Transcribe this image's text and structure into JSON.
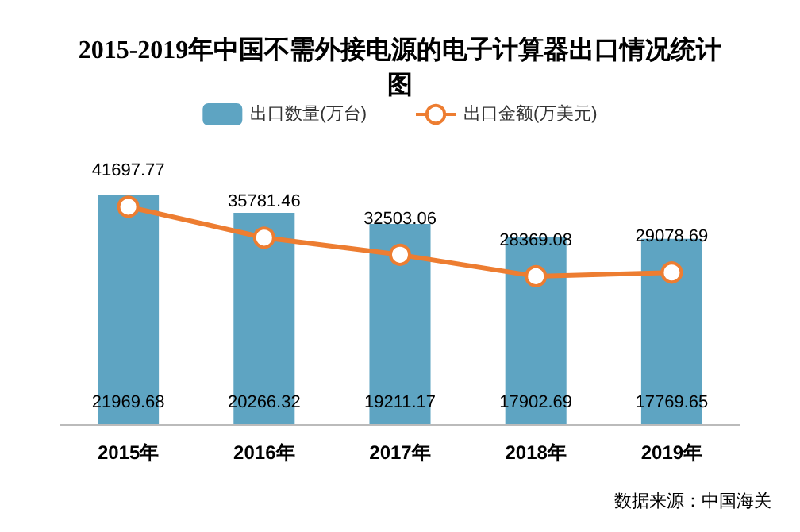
{
  "chart_data": {
    "type": "bar",
    "title": "2015-2019年中国不需外接电源的电子计算器出口情况统计图",
    "categories": [
      "2015年",
      "2016年",
      "2017年",
      "2018年",
      "2019年"
    ],
    "series": [
      {
        "name": "出口数量(万台)",
        "color": "#5ea4c2",
        "values": [
          21969.68,
          20266.32,
          19211.17,
          17902.69,
          17769.65
        ]
      },
      {
        "name": "出口金额(万美元)",
        "type": "line",
        "axis": "y2",
        "color": "#ed7d31",
        "values": [
          41697.77,
          35781.46,
          32503.06,
          28369.08,
          29078.69
        ]
      }
    ],
    "data_labels": true,
    "legend": "top",
    "marker": "circle",
    "tick_labels": "x",
    "grid": false,
    "annotations": [
      "数据来源：中国海关"
    ]
  }
}
